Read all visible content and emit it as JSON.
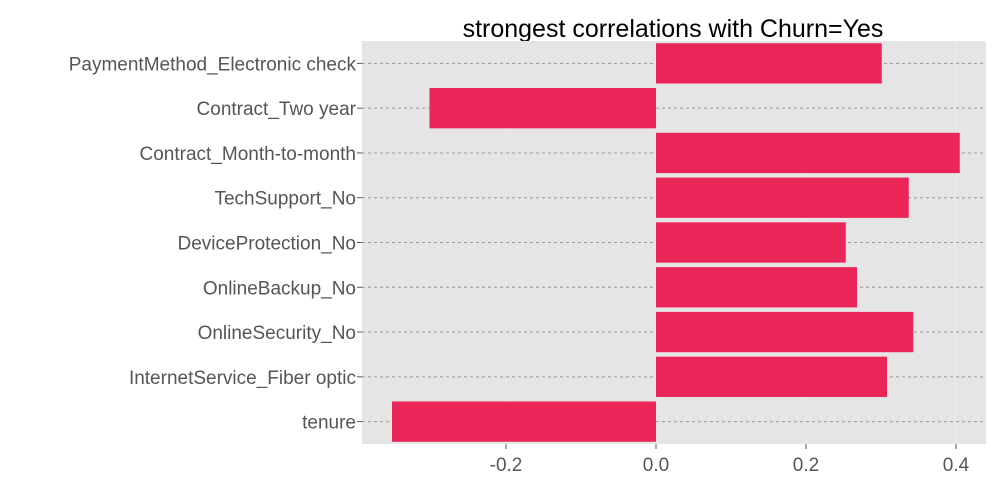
{
  "chart_data": {
    "type": "bar",
    "orientation": "horizontal",
    "title": "strongest correlations with Churn=Yes",
    "xlabel": "",
    "ylabel": "",
    "categories": [
      "PaymentMethod_Electronic check",
      "Contract_Two year",
      "Contract_Month-to-month",
      "TechSupport_No",
      "DeviceProtection_No",
      "OnlineBackup_No",
      "OnlineSecurity_No",
      "InternetService_Fiber optic",
      "tenure"
    ],
    "values": [
      0.301,
      -0.302,
      0.405,
      0.337,
      0.253,
      0.268,
      0.343,
      0.308,
      -0.352
    ],
    "xlim": [
      -0.392,
      0.44
    ],
    "xticks": [
      -0.2,
      0.0,
      0.2,
      0.4
    ],
    "xtick_labels": [
      "-0.2",
      "0.0",
      "0.2",
      "0.4"
    ],
    "grid": true,
    "colors": {
      "bar": "#e91e52",
      "panel": "#e5e5e5",
      "gridline": "#9a9a9a",
      "tick_text": "#555555"
    }
  }
}
